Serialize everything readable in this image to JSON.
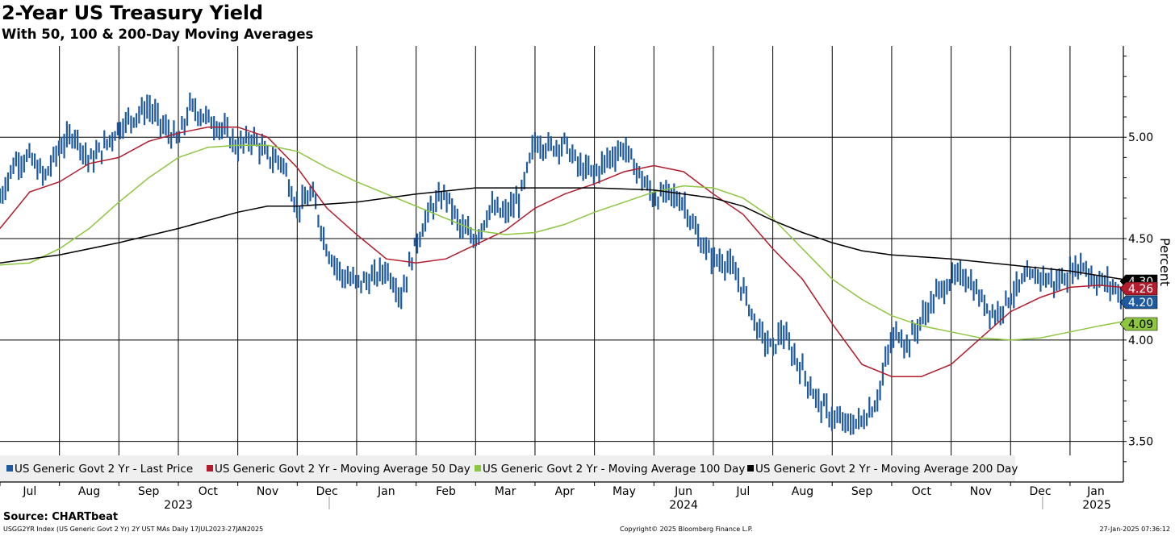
{
  "chart_data": {
    "type": "line",
    "title": "2-Year US Treasury Yield",
    "subtitle": "With 50, 100 & 200-Day Moving Averages",
    "ylabel": "Percent",
    "ylim": [
      3.3,
      5.45
    ],
    "y_ticks": [
      "3.50",
      "4.00",
      "4.50",
      "5.00"
    ],
    "grid": true,
    "legend_position": "bottom-left",
    "x_months": [
      {
        "label": "Jul",
        "start": 0.0
      },
      {
        "label": "Aug",
        "start": 1.0
      },
      {
        "label": "Sep",
        "start": 2.0
      },
      {
        "label": "Oct",
        "start": 3.0
      },
      {
        "label": "Nov",
        "start": 4.0
      },
      {
        "label": "Dec",
        "start": 5.0
      },
      {
        "label": "Jan",
        "start": 6.0
      },
      {
        "label": "Feb",
        "start": 7.0
      },
      {
        "label": "Mar",
        "start": 8.0
      },
      {
        "label": "Apr",
        "start": 9.0
      },
      {
        "label": "May",
        "start": 10.0
      },
      {
        "label": "Jun",
        "start": 11.0
      },
      {
        "label": "Jul",
        "start": 12.0
      },
      {
        "label": "Aug",
        "start": 13.0
      },
      {
        "label": "Sep",
        "start": 14.0
      },
      {
        "label": "Oct",
        "start": 15.0
      },
      {
        "label": "Nov",
        "start": 16.0
      },
      {
        "label": "Dec",
        "start": 17.0
      },
      {
        "label": "Jan",
        "start": 18.0
      }
    ],
    "x_end": 18.87,
    "years": [
      {
        "label": "2023",
        "center": 3.0
      },
      {
        "label": "2024",
        "center": 11.5
      },
      {
        "label": "2025",
        "center": 18.45
      }
    ],
    "series": [
      {
        "name": "US Generic Govt 2 Yr - Last Price",
        "color": "#1f5aa0",
        "style": "bars",
        "last_value": "4.20",
        "x": [
          0.0,
          0.25,
          0.5,
          0.75,
          1.0,
          1.25,
          1.5,
          1.75,
          2.0,
          2.25,
          2.5,
          2.75,
          3.0,
          3.2,
          3.45,
          3.75,
          4.0,
          4.25,
          4.5,
          4.75,
          5.0,
          5.25,
          5.5,
          5.75,
          6.0,
          6.25,
          6.5,
          6.75,
          7.0,
          7.25,
          7.5,
          7.75,
          8.0,
          8.25,
          8.5,
          8.75,
          9.0,
          9.25,
          9.5,
          9.75,
          10.0,
          10.25,
          10.5,
          10.75,
          11.0,
          11.25,
          11.5,
          11.75,
          12.0,
          12.25,
          12.5,
          12.75,
          13.0,
          13.15,
          13.3,
          13.5,
          13.75,
          14.0,
          14.25,
          14.5,
          14.75,
          14.95,
          15.1,
          15.25,
          15.5,
          15.75,
          16.0,
          16.25,
          16.5,
          16.75,
          17.0,
          17.25,
          17.5,
          17.75,
          18.0,
          18.2,
          18.4,
          18.6,
          18.8,
          18.87
        ],
        "y": [
          4.7,
          4.88,
          4.9,
          4.8,
          4.95,
          5.02,
          4.88,
          4.95,
          5.05,
          5.1,
          5.15,
          5.05,
          4.98,
          5.15,
          5.1,
          5.04,
          4.95,
          5.0,
          4.9,
          4.88,
          4.65,
          4.72,
          4.45,
          4.32,
          4.28,
          4.3,
          4.35,
          4.22,
          4.48,
          4.65,
          4.72,
          4.55,
          4.5,
          4.65,
          4.62,
          4.7,
          4.98,
          4.95,
          4.97,
          4.85,
          4.82,
          4.9,
          4.95,
          4.82,
          4.7,
          4.72,
          4.68,
          4.5,
          4.4,
          4.38,
          4.25,
          4.05,
          3.95,
          4.05,
          3.95,
          3.85,
          3.7,
          3.62,
          3.58,
          3.6,
          3.7,
          3.95,
          4.05,
          3.97,
          4.1,
          4.22,
          4.3,
          4.32,
          4.2,
          4.12,
          4.22,
          4.3,
          4.32,
          4.28,
          4.33,
          4.38,
          4.3,
          4.28,
          4.25,
          4.2
        ]
      },
      {
        "name": "US Generic Govt 2 Yr - Moving Average 50 Day",
        "color": "#b21c2c",
        "style": "line",
        "last_value": "4.26",
        "x": [
          0.0,
          0.5,
          1.0,
          1.5,
          2.0,
          2.5,
          3.0,
          3.5,
          4.0,
          4.5,
          5.0,
          5.5,
          6.0,
          6.5,
          7.0,
          7.5,
          8.0,
          8.5,
          9.0,
          9.5,
          10.0,
          10.5,
          11.0,
          11.5,
          12.0,
          12.5,
          13.0,
          13.5,
          14.0,
          14.5,
          15.0,
          15.5,
          16.0,
          16.5,
          17.0,
          17.5,
          18.0,
          18.5,
          18.87
        ],
        "y": [
          4.55,
          4.73,
          4.78,
          4.87,
          4.9,
          4.98,
          5.02,
          5.05,
          5.05,
          5.0,
          4.85,
          4.65,
          4.52,
          4.4,
          4.38,
          4.4,
          4.47,
          4.54,
          4.65,
          4.72,
          4.77,
          4.83,
          4.86,
          4.83,
          4.72,
          4.62,
          4.45,
          4.3,
          4.08,
          3.88,
          3.82,
          3.82,
          3.88,
          4.01,
          4.14,
          4.21,
          4.26,
          4.27,
          4.26
        ]
      },
      {
        "name": "US Generic Govt 2 Yr - Moving Average 100 Day",
        "color": "#8dc63f",
        "style": "line",
        "last_value": "4.09",
        "x": [
          0.0,
          0.5,
          1.0,
          1.5,
          2.0,
          2.5,
          3.0,
          3.5,
          4.0,
          4.5,
          5.0,
          5.5,
          6.0,
          6.5,
          7.0,
          7.5,
          8.0,
          8.5,
          9.0,
          9.5,
          10.0,
          10.5,
          11.0,
          11.5,
          12.0,
          12.5,
          13.0,
          13.5,
          14.0,
          14.5,
          15.0,
          15.5,
          16.0,
          16.5,
          17.0,
          17.5,
          18.0,
          18.5,
          18.87
        ],
        "y": [
          4.37,
          4.38,
          4.45,
          4.55,
          4.68,
          4.8,
          4.9,
          4.95,
          4.96,
          4.96,
          4.93,
          4.85,
          4.78,
          4.72,
          4.66,
          4.6,
          4.54,
          4.52,
          4.53,
          4.57,
          4.63,
          4.68,
          4.73,
          4.76,
          4.75,
          4.7,
          4.6,
          4.45,
          4.3,
          4.2,
          4.12,
          4.07,
          4.04,
          4.01,
          4.0,
          4.01,
          4.04,
          4.07,
          4.09
        ]
      },
      {
        "name": "US Generic Govt 2 Yr - Moving Average 200 Day",
        "color": "#000000",
        "style": "line",
        "last_value": "4.30",
        "x": [
          0.0,
          1.0,
          2.0,
          3.0,
          4.0,
          4.5,
          5.0,
          6.0,
          7.0,
          8.0,
          9.0,
          10.0,
          11.0,
          12.0,
          12.5,
          13.0,
          13.5,
          14.0,
          14.5,
          15.0,
          16.0,
          17.0,
          18.0,
          18.87
        ],
        "y": [
          4.38,
          4.42,
          4.48,
          4.55,
          4.63,
          4.66,
          4.66,
          4.68,
          4.72,
          4.75,
          4.75,
          4.75,
          4.74,
          4.7,
          4.66,
          4.59,
          4.53,
          4.48,
          4.44,
          4.42,
          4.4,
          4.37,
          4.34,
          4.3
        ]
      }
    ]
  },
  "source_text": "Source: CHARTbeat",
  "footer": {
    "left": "USGG2YR Index (US Generic Govt 2 Yr) 2Y UST MAs  Daily 17JUL2023-27JAN2025",
    "middle": "Copyright© 2025 Bloomberg Finance L.P.",
    "right": "27-Jan-2025 07:36:12"
  }
}
